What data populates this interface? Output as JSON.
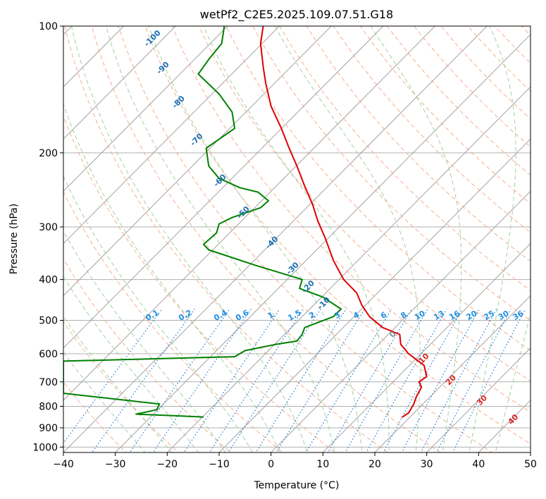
{
  "chart_data": {
    "type": "line",
    "title": "wetPf2_C2E5.2025.109.07.51.G18",
    "xlabel": "Temperature (°C)",
    "ylabel": "Pressure (hPa)",
    "xlim": [
      -40,
      50
    ],
    "ylim": [
      1030,
      100
    ],
    "y_scale": "log",
    "x_ticks": [
      -40,
      -30,
      -20,
      -10,
      0,
      10,
      20,
      30,
      40,
      50
    ],
    "y_ticks": [
      100,
      200,
      300,
      400,
      500,
      600,
      700,
      800,
      900,
      1000
    ],
    "grid": true,
    "series": [
      {
        "color": "#e00000",
        "points": [
          [
            25.2,
            850
          ],
          [
            26.5,
            830
          ],
          [
            27.5,
            790
          ],
          [
            28.0,
            760
          ],
          [
            29.0,
            720
          ],
          [
            28.5,
            700
          ],
          [
            30.0,
            680
          ],
          [
            29.5,
            640
          ],
          [
            26.5,
            600
          ],
          [
            25.0,
            570
          ],
          [
            24.8,
            540
          ],
          [
            21.5,
            520
          ],
          [
            19.0,
            490
          ],
          [
            17.5,
            460
          ],
          [
            16.5,
            430
          ],
          [
            14.0,
            400
          ],
          [
            12.0,
            360
          ],
          [
            10.5,
            320
          ],
          [
            9.0,
            290
          ],
          [
            8.0,
            265
          ],
          [
            6.5,
            240
          ],
          [
            5.0,
            215
          ],
          [
            3.5,
            195
          ],
          [
            2.0,
            175
          ],
          [
            0.0,
            155
          ],
          [
            -1.0,
            137
          ],
          [
            -1.5,
            125
          ],
          [
            -2.0,
            110
          ],
          [
            -1.5,
            100
          ]
        ]
      },
      {
        "color": "#008000",
        "points": [
          [
            -13.0,
            848
          ],
          [
            -26.0,
            835
          ],
          [
            -22.0,
            815
          ],
          [
            -21.5,
            790
          ],
          [
            -40.0,
            745
          ],
          [
            -40.0,
            625
          ],
          [
            -7.0,
            610
          ],
          [
            -5.0,
            590
          ],
          [
            1.0,
            570
          ],
          [
            5.0,
            560
          ],
          [
            6.0,
            540
          ],
          [
            6.5,
            520
          ],
          [
            12.0,
            490
          ],
          [
            13.5,
            470
          ],
          [
            10.0,
            440
          ],
          [
            5.5,
            420
          ],
          [
            6.0,
            400
          ],
          [
            -3.0,
            370
          ],
          [
            -12.0,
            340
          ],
          [
            -13.0,
            330
          ],
          [
            -10.5,
            310
          ],
          [
            -10.0,
            295
          ],
          [
            -7.5,
            285
          ],
          [
            -2.0,
            270
          ],
          [
            -0.5,
            260
          ],
          [
            -2.5,
            248
          ],
          [
            -6.0,
            242
          ],
          [
            -10.0,
            230
          ],
          [
            -12.0,
            215
          ],
          [
            -12.5,
            195
          ],
          [
            -7.0,
            175
          ],
          [
            -7.5,
            160
          ],
          [
            -10.0,
            145
          ],
          [
            -14.0,
            130
          ],
          [
            -12.0,
            120
          ],
          [
            -9.5,
            110
          ],
          [
            -9.0,
            100
          ]
        ]
      }
    ],
    "isotherm_skew_deg_per_log": 35,
    "dry_adiabat_labels": [
      "-100",
      "-90",
      "-80",
      "-70",
      "-60",
      "-50",
      "-40",
      "-30",
      "-20",
      "-10"
    ],
    "moist_adiabat_labels": [
      "0",
      "10",
      "20",
      "30",
      "40"
    ],
    "mixing_ratio_labels": [
      "0.1",
      "0.2",
      "0.4",
      "0.6",
      "1",
      "1.5",
      "2",
      "3",
      "4",
      "6",
      "8",
      "10",
      "13",
      "16",
      "20",
      "25",
      "30",
      "36"
    ],
    "colors": {
      "temperature": "#e00000",
      "dewpoint": "#008000",
      "dry_adiabat": "#f4a582",
      "moist_adiabat": "#8fc98f",
      "mixing_ratio": "#1f77d4",
      "isotherm": "#999999",
      "dry_label": "#1f6fb4",
      "moist_label": "#d62728",
      "mixing_label": "#1f8fe0"
    }
  }
}
